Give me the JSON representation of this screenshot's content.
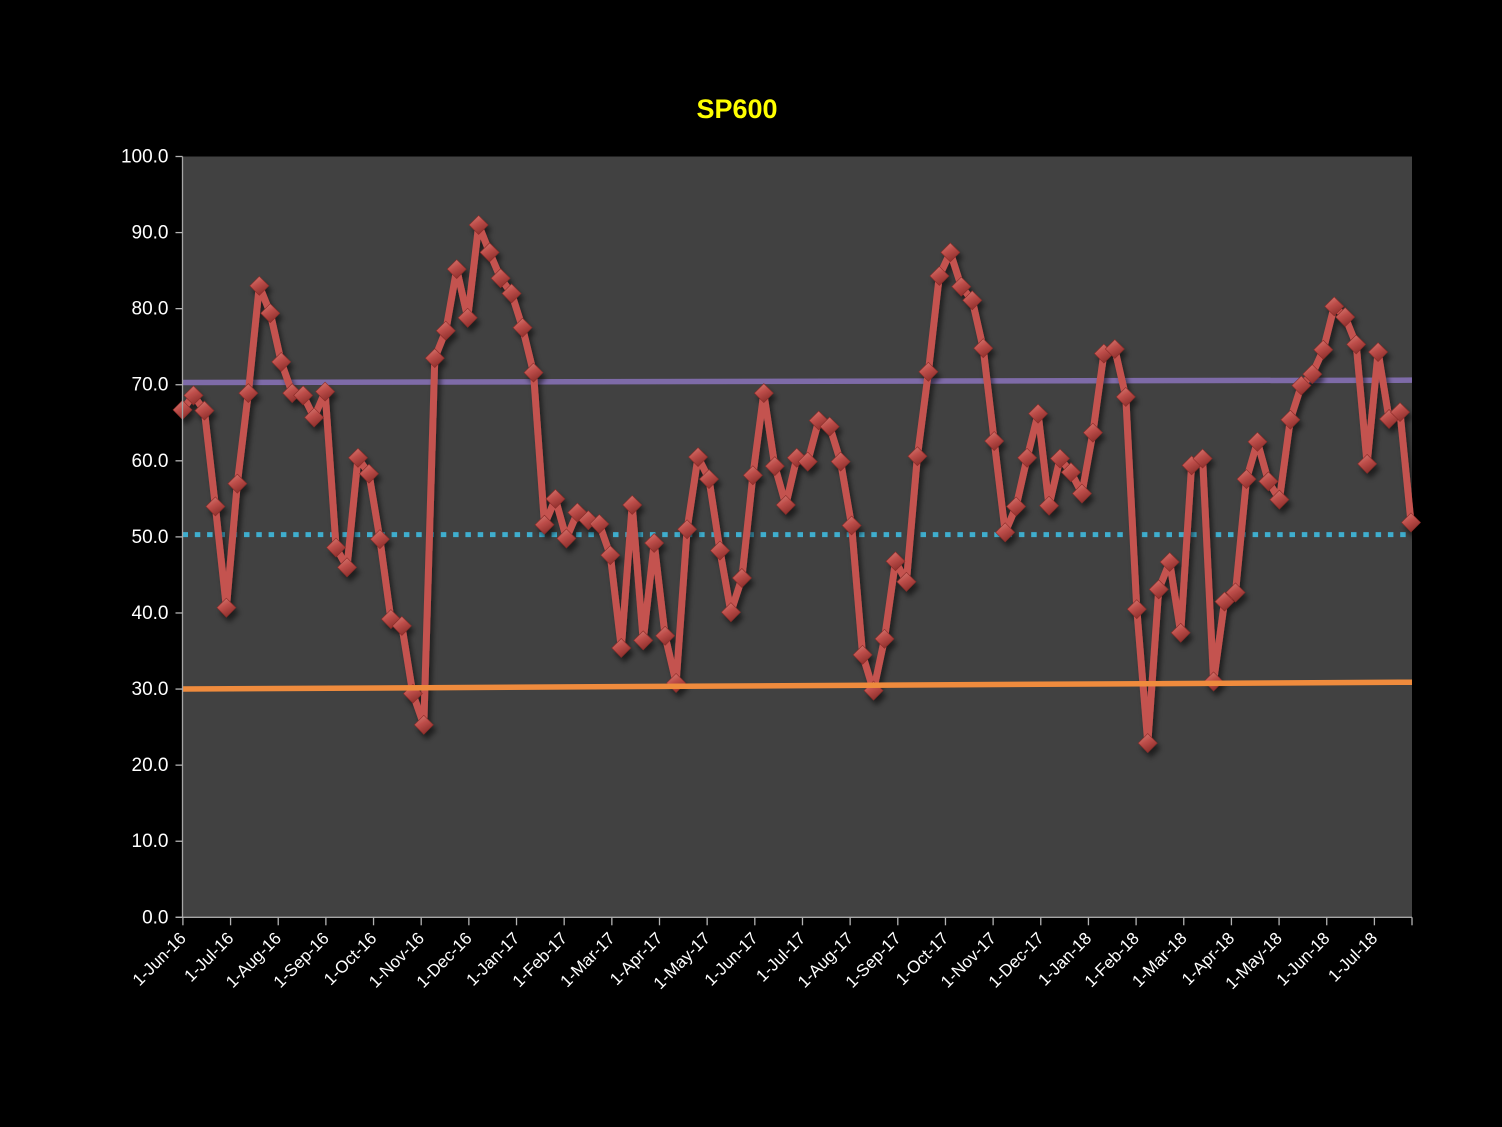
{
  "title": {
    "text": "SP600",
    "color": "#FFFF00"
  },
  "chart_data": {
    "type": "line",
    "title": "SP600",
    "grid": false,
    "legend": false,
    "page_bg": "#000000",
    "plot_bg": "#414141",
    "axis_color": "#A6A6A6",
    "tick_color": "#B3B3B3",
    "label_color": "#FFFFFF",
    "x_axis": {
      "tick_interval": "monthly",
      "labels": [
        "1-Jun-16",
        "1-Jul-16",
        "1-Aug-16",
        "1-Sep-16",
        "1-Oct-16",
        "1-Nov-16",
        "1-Dec-16",
        "1-Jan-17",
        "1-Feb-17",
        "1-Mar-17",
        "1-Apr-17",
        "1-May-17",
        "1-Jun-17",
        "1-Jul-17",
        "1-Aug-17",
        "1-Sep-17",
        "1-Oct-17",
        "1-Nov-17",
        "1-Dec-17",
        "1-Jan-18",
        "1-Feb-18",
        "1-Mar-18",
        "1-Apr-18",
        "1-May-18",
        "1-Jun-18",
        "1-Jul-18"
      ]
    },
    "y_axis": {
      "min": 0,
      "max": 100,
      "step": 10,
      "tick_labels": [
        "100.0",
        "90.0",
        "80.0",
        "70.0",
        "60.0",
        "50.0",
        "40.0",
        "30.0",
        "20.0",
        "10.0",
        "0.0"
      ]
    },
    "series": [
      {
        "name": "sp600-weekly",
        "kind": "data",
        "color": "#C4524F",
        "marker": "diamond",
        "marker_colors": [
          "#DA837B",
          "#BE4E4A",
          "#8E2F2C"
        ],
        "values": [
          66.7,
          68.6,
          66.6,
          54.0,
          40.7,
          57.0,
          68.9,
          83.0,
          79.4,
          73.0,
          68.9,
          68.6,
          65.7,
          69.1,
          48.6,
          46.0,
          60.4,
          58.3,
          49.7,
          39.2,
          38.3,
          29.4,
          25.3,
          73.5,
          77.1,
          85.2,
          78.8,
          91.0,
          87.4,
          84.0,
          82.0,
          77.5,
          71.6,
          51.6,
          55.0,
          49.8,
          53.2,
          52.2,
          51.7,
          47.6,
          35.4,
          54.2,
          36.4,
          49.2,
          37.0,
          30.8,
          51.0,
          60.5,
          57.6,
          48.2,
          40.1,
          44.6,
          58.1,
          68.9,
          59.3,
          54.2,
          60.4,
          59.9,
          65.3,
          64.5,
          59.9,
          51.5,
          34.5,
          29.8,
          36.6,
          46.8,
          44.1,
          60.6,
          71.7,
          84.3,
          87.4,
          82.9,
          81.1,
          74.8,
          62.6,
          50.6,
          54.0,
          60.4,
          66.2,
          54.1,
          60.3,
          58.5,
          55.7,
          63.7,
          74.1,
          74.7,
          68.4,
          40.5,
          22.9,
          43.1,
          46.7,
          37.4,
          59.4,
          60.3,
          31.0,
          41.5,
          42.7,
          57.6,
          62.5,
          57.3,
          54.9,
          65.4,
          69.9,
          71.4,
          74.6,
          80.3,
          78.9,
          75.3,
          59.6,
          74.3,
          65.5,
          66.4,
          51.9
        ]
      },
      {
        "name": "upper-reference-line",
        "kind": "reference",
        "style": "solid",
        "color": "#7E6BA8",
        "start": 70.3,
        "end": 70.6
      },
      {
        "name": "mid-reference-line",
        "kind": "reference",
        "style": "dotted",
        "color": "#3FAECE",
        "start": 50.3,
        "end": 50.3
      },
      {
        "name": "lower-reference-line",
        "kind": "reference",
        "style": "solid",
        "color": "#EF8B3D",
        "start": 30.0,
        "end": 30.9
      }
    ]
  }
}
